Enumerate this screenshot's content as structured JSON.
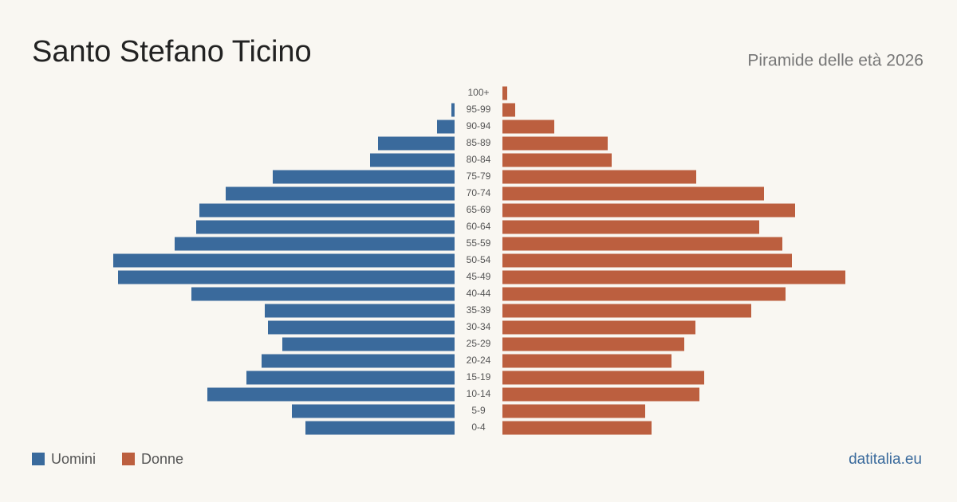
{
  "chart_data": {
    "type": "pyramid",
    "title": "Santo Stefano Ticino",
    "subtitle": "Piramide delle età 2026",
    "source": "datitalia.eu",
    "categories": [
      "100+",
      "95-99",
      "90-94",
      "85-89",
      "80-84",
      "75-79",
      "70-74",
      "65-69",
      "60-64",
      "55-59",
      "50-54",
      "45-49",
      "40-44",
      "35-39",
      "30-34",
      "25-29",
      "20-24",
      "15-19",
      "10-14",
      "5-9",
      "0-4"
    ],
    "series": [
      {
        "name": "Uomini",
        "color": "#3a6a9c",
        "values": [
          0,
          4,
          22,
          96,
          106,
          228,
          287,
          320,
          324,
          351,
          428,
          422,
          330,
          238,
          234,
          216,
          242,
          261,
          310,
          204,
          187
        ]
      },
      {
        "name": "Donne",
        "color": "#bc5f3f",
        "values": [
          6,
          16,
          65,
          132,
          137,
          243,
          328,
          367,
          322,
          351,
          363,
          430,
          355,
          312,
          242,
          228,
          212,
          253,
          247,
          179,
          187
        ]
      }
    ]
  }
}
